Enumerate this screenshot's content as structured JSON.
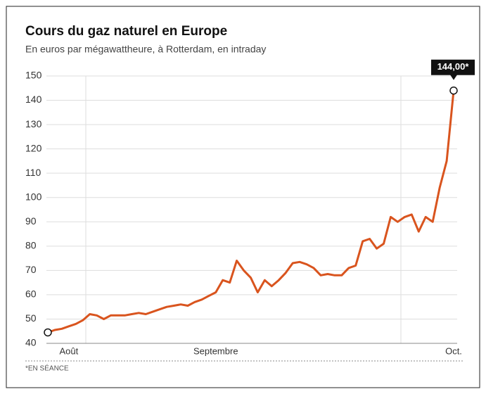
{
  "chart_data": {
    "type": "line",
    "title": "Cours du gaz naturel en Europe",
    "subtitle": "En euros par mégawattheure, à Rotterdam, en intraday",
    "footnote": "*EN SÉANCE",
    "categories": [
      null,
      null,
      null,
      "Août",
      null,
      null,
      null,
      null,
      null,
      null,
      null,
      null,
      null,
      null,
      null,
      null,
      null,
      null,
      null,
      null,
      null,
      null,
      null,
      null,
      "Septembre",
      null,
      null,
      null,
      null,
      null,
      null,
      null,
      null,
      null,
      null,
      null,
      null,
      null,
      null,
      null,
      null,
      null,
      null,
      null,
      null,
      null,
      null,
      null,
      null,
      null,
      null,
      null,
      null,
      null,
      null,
      null,
      null,
      null,
      "Oct."
    ],
    "series": [
      {
        "color": "#d9541e",
        "values": [
          44.5,
          45.5,
          46,
          47,
          48,
          49.5,
          52,
          51.5,
          50,
          51.5,
          51.5,
          51.5,
          52,
          52.5,
          52,
          53,
          54,
          55,
          55.5,
          56,
          55.5,
          57,
          58,
          59.5,
          61,
          66,
          65,
          74,
          70,
          67,
          61,
          66,
          63.5,
          66,
          69,
          73,
          73.5,
          72.5,
          71,
          68,
          68.5,
          68,
          68,
          71,
          72,
          82,
          83,
          79,
          81,
          92,
          90,
          92,
          93,
          86,
          92,
          90,
          104,
          115,
          144
        ],
        "value_labels": [
          null,
          null,
          null,
          null,
          null,
          null,
          null,
          null,
          null,
          null,
          null,
          null,
          null,
          null,
          null,
          null,
          null,
          null,
          null,
          null,
          null,
          null,
          null,
          null,
          null,
          null,
          null,
          null,
          null,
          null,
          null,
          null,
          null,
          null,
          null,
          null,
          null,
          null,
          null,
          null,
          null,
          null,
          null,
          null,
          null,
          null,
          null,
          null,
          null,
          null,
          null,
          null,
          null,
          null,
          null,
          null,
          null,
          null,
          "144,00*"
        ]
      }
    ],
    "ylim": [
      40,
      150
    ],
    "yticks": [
      40,
      50,
      60,
      70,
      80,
      90,
      100,
      110,
      120,
      130,
      140,
      150
    ],
    "grid": true
  }
}
